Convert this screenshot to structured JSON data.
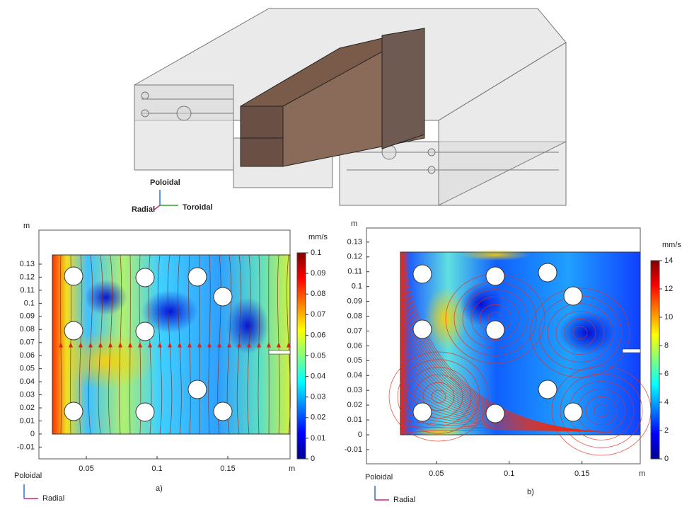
{
  "render_axes": {
    "up": "Poloidal",
    "left": "Radial",
    "right": "Toroidal"
  },
  "chart_data": [
    {
      "type": "field",
      "panel_label": "a)",
      "x_unit": "m",
      "y_unit": "m",
      "axis_up": "Poloidal",
      "axis_right": "Radial",
      "xlim": [
        0.0165,
        0.194
      ],
      "xticks": [
        0.05,
        0.1,
        0.15
      ],
      "ylim": [
        -0.019,
        0.156
      ],
      "yticks": [
        -0.01,
        0,
        0.01,
        0.02,
        0.03,
        0.04,
        0.05,
        0.06,
        0.07,
        0.08,
        0.09,
        0.1,
        0.11,
        0.12,
        0.13
      ],
      "colorbar": {
        "unit": "mm/s",
        "lim": [
          0,
          0.1
        ],
        "ticks": [
          0,
          0.01,
          0.02,
          0.03,
          0.04,
          0.05,
          0.06,
          0.07,
          0.08,
          0.09,
          0.1
        ]
      }
    },
    {
      "type": "field",
      "panel_label": "b)",
      "x_unit": "m",
      "y_unit": "m",
      "axis_up": "Poloidal",
      "axis_right": "Radial",
      "xlim": [
        0.002,
        0.19
      ],
      "xticks": [
        0.05,
        0.1,
        0.15
      ],
      "ylim": [
        -0.0196,
        0.1395
      ],
      "yticks": [
        -0.01,
        0,
        0.01,
        0.02,
        0.03,
        0.04,
        0.05,
        0.06,
        0.07,
        0.08,
        0.09,
        0.1,
        0.11,
        0.12,
        0.13
      ],
      "colorbar": {
        "unit": "mm/s",
        "lim": [
          0,
          14
        ],
        "ticks": [
          0,
          2,
          4,
          6,
          8,
          10,
          12,
          14
        ]
      }
    }
  ]
}
